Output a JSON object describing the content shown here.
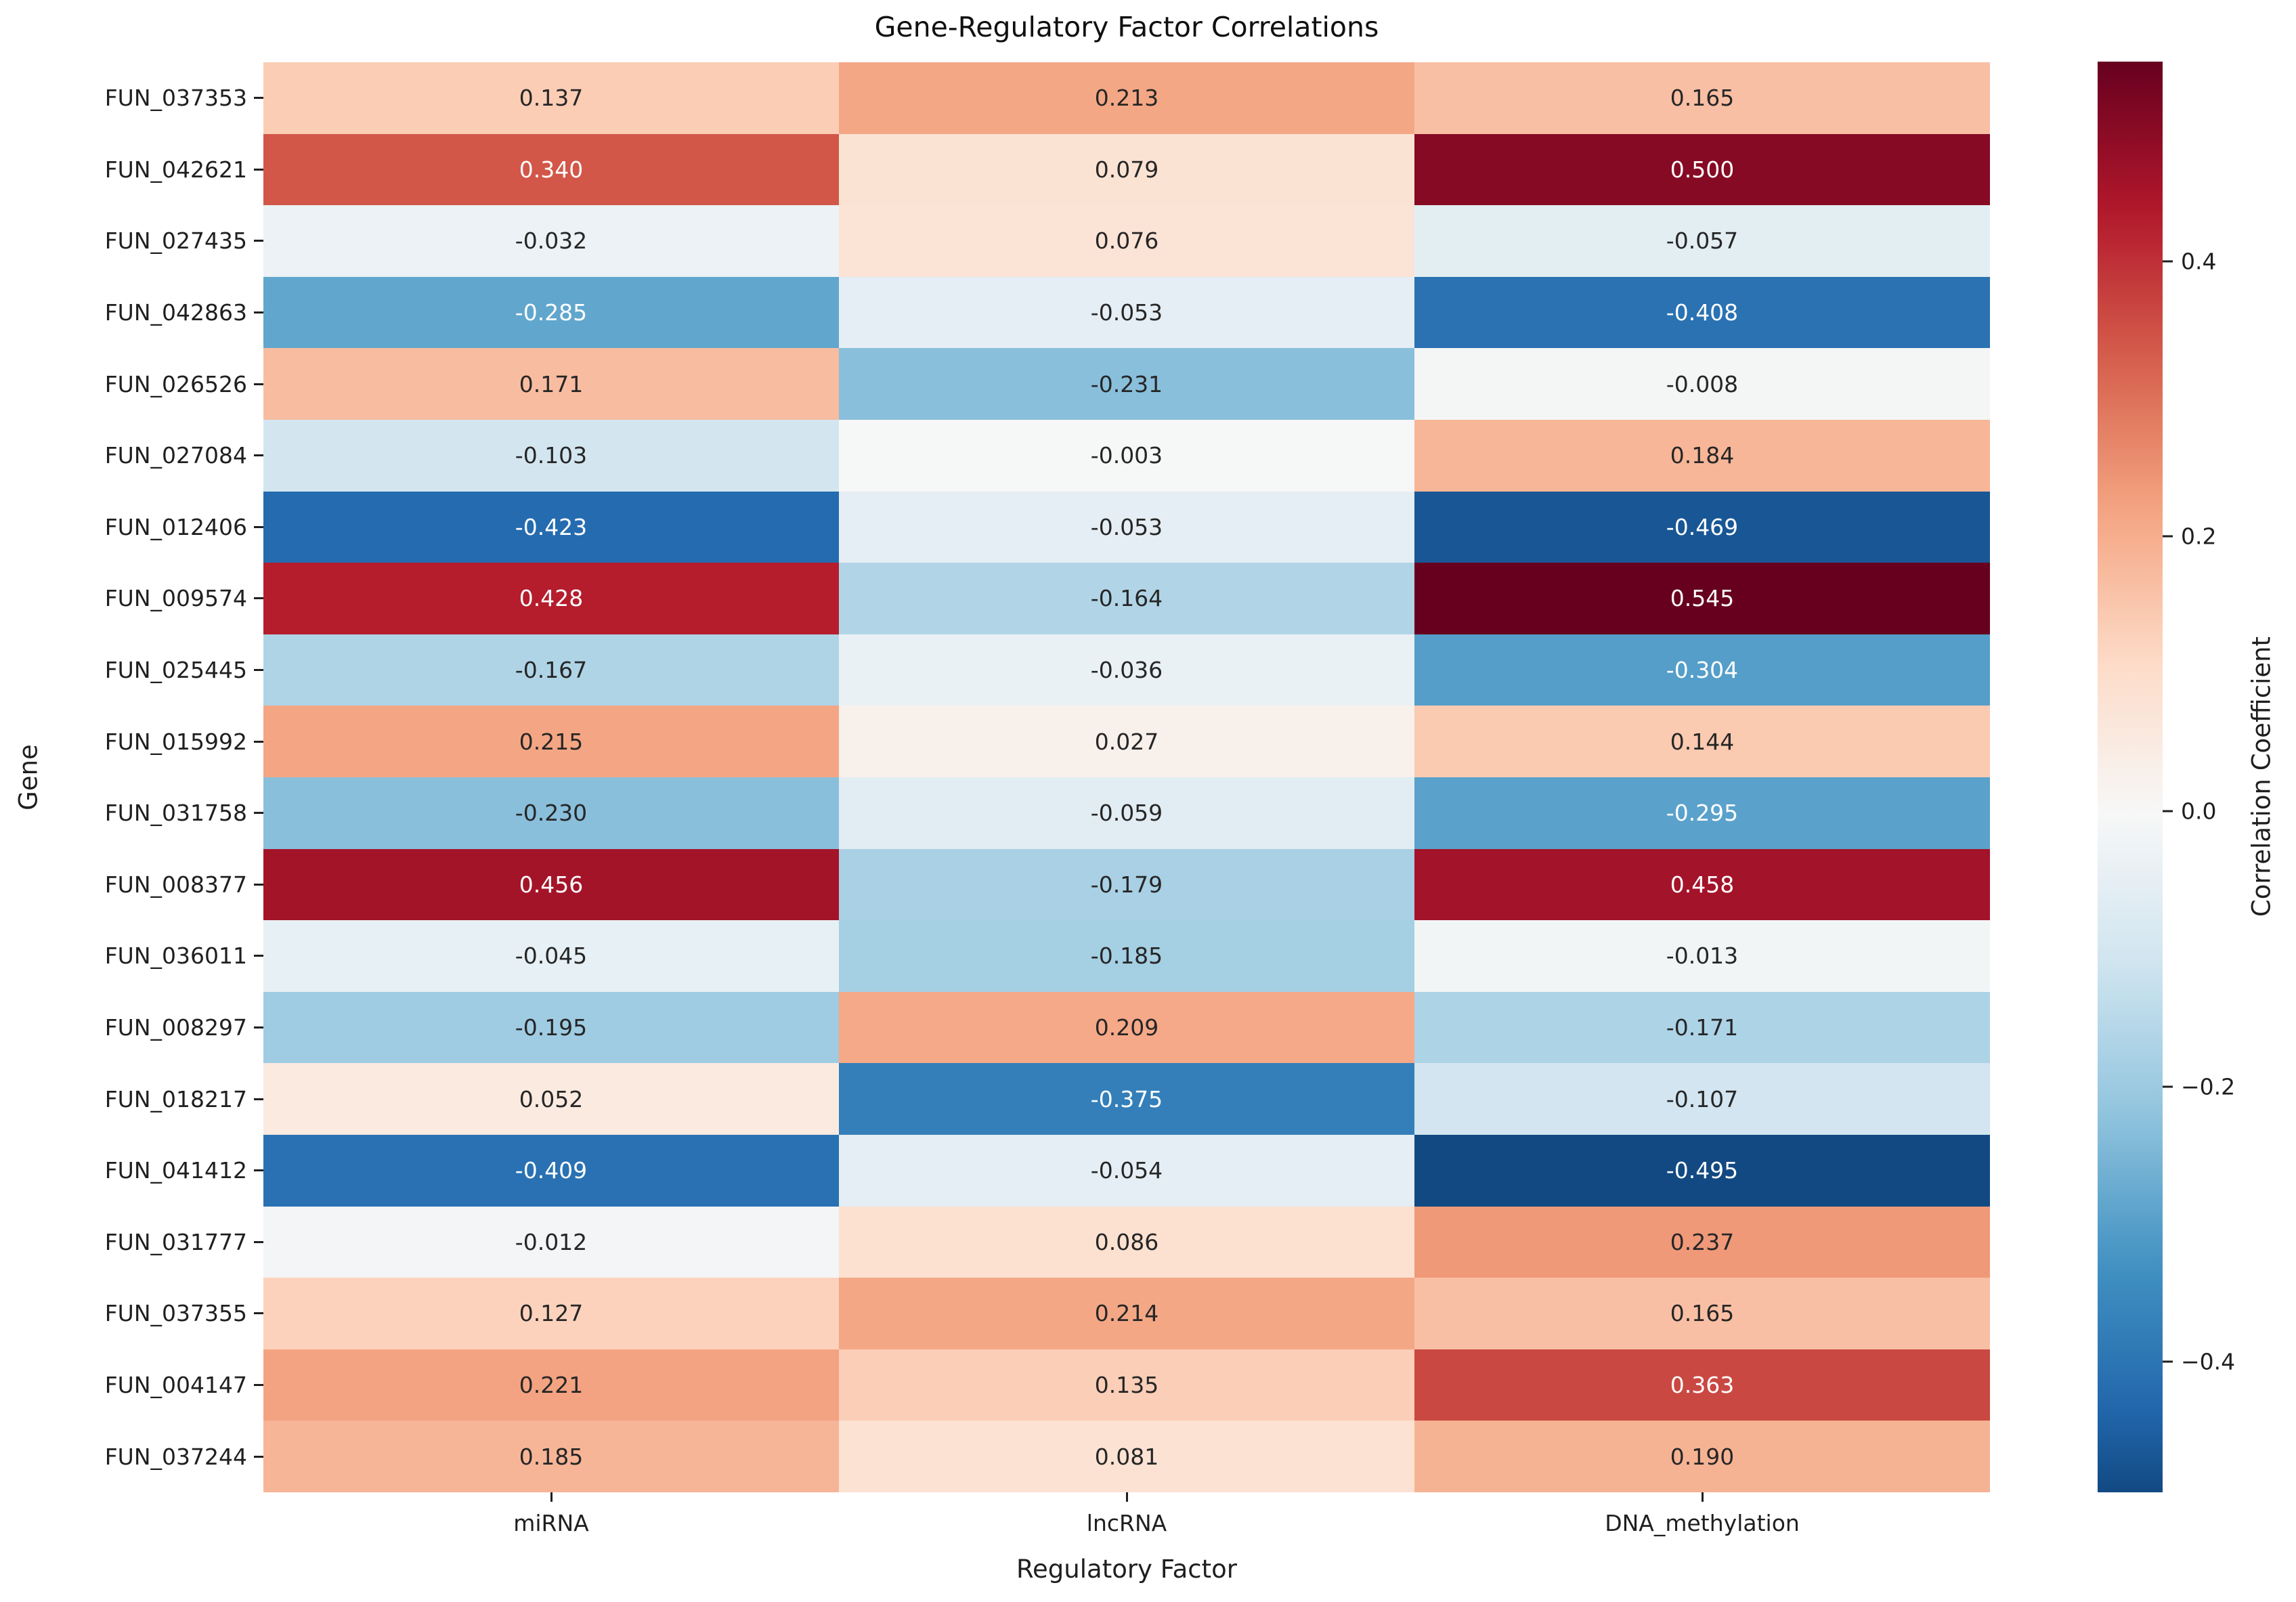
{
  "chart_data": {
    "type": "heatmap",
    "title": "Gene-Regulatory Factor Correlations",
    "xlabel": "Regulatory Factor",
    "ylabel": "Gene",
    "columns": [
      "miRNA",
      "lncRNA",
      "DNA_methylation"
    ],
    "rows": [
      "FUN_037353",
      "FUN_042621",
      "FUN_027435",
      "FUN_042863",
      "FUN_026526",
      "FUN_027084",
      "FUN_012406",
      "FUN_009574",
      "FUN_025445",
      "FUN_015992",
      "FUN_031758",
      "FUN_008377",
      "FUN_036011",
      "FUN_008297",
      "FUN_018217",
      "FUN_041412",
      "FUN_031777",
      "FUN_037355",
      "FUN_004147",
      "FUN_037244"
    ],
    "values": [
      [
        0.137,
        0.213,
        0.165
      ],
      [
        0.34,
        0.079,
        0.5
      ],
      [
        -0.032,
        0.076,
        -0.057
      ],
      [
        -0.285,
        -0.053,
        -0.408
      ],
      [
        0.171,
        -0.231,
        -0.008
      ],
      [
        -0.103,
        -0.003,
        0.184
      ],
      [
        -0.423,
        -0.053,
        -0.469
      ],
      [
        0.428,
        -0.164,
        0.545
      ],
      [
        -0.167,
        -0.036,
        -0.304
      ],
      [
        0.215,
        0.027,
        0.144
      ],
      [
        -0.23,
        -0.059,
        -0.295
      ],
      [
        0.456,
        -0.179,
        0.458
      ],
      [
        -0.045,
        -0.185,
        -0.013
      ],
      [
        -0.195,
        0.209,
        -0.171
      ],
      [
        0.052,
        -0.375,
        -0.107
      ],
      [
        -0.409,
        -0.054,
        -0.495
      ],
      [
        -0.012,
        0.086,
        0.237
      ],
      [
        0.127,
        0.214,
        0.165
      ],
      [
        0.221,
        0.135,
        0.363
      ],
      [
        0.185,
        0.081,
        0.19
      ]
    ],
    "annotation_decimals": 3,
    "grid": false,
    "colormap": "RdBu_r",
    "color_scale_domain": [
      -0.545,
      0.545
    ],
    "colorbar": {
      "label": "Correlation Coefficient",
      "position": "right",
      "range": [
        -0.495,
        0.545
      ],
      "ticks": [
        0.4,
        0.2,
        0.0,
        -0.2,
        -0.4
      ],
      "tick_labels": [
        "0.4",
        "0.2",
        "0.0",
        "−0.2",
        "−0.4"
      ]
    }
  }
}
